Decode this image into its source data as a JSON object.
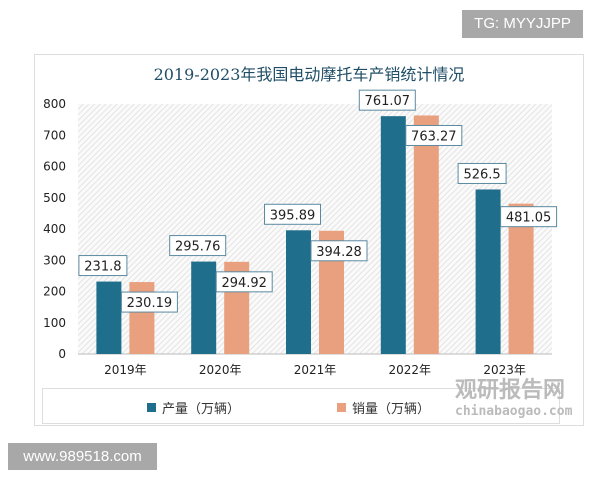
{
  "watermarks": {
    "top_right": "TG: MYYJJPP",
    "bottom_left": "www.989518.com",
    "logo_cn": "观研报告网",
    "logo_url": "chinabaogao.com"
  },
  "chart_data": {
    "type": "bar",
    "title": "2019-2023年我国电动摩托车产销统计情况",
    "categories": [
      "2019年",
      "2020年",
      "2021年",
      "2022年",
      "2023年"
    ],
    "series": [
      {
        "name": "产量（万辆）",
        "color": "#1f6e8c",
        "values": [
          231.8,
          295.76,
          395.89,
          761.07,
          526.5
        ],
        "labels": [
          "231.8",
          "295.76",
          "395.89",
          "761.07",
          "526.5"
        ]
      },
      {
        "name": "销量（万辆）",
        "color": "#e8a07f",
        "values": [
          230.19,
          294.92,
          394.28,
          763.27,
          481.05
        ],
        "labels": [
          "230.19",
          "294.92",
          "394.28",
          "763.27",
          "481.05"
        ]
      }
    ],
    "ylim": [
      0,
      800
    ],
    "yticks": [
      "0",
      "100",
      "200",
      "300",
      "400",
      "500",
      "600",
      "700",
      "800"
    ],
    "legend": "bottom",
    "grid": false
  }
}
